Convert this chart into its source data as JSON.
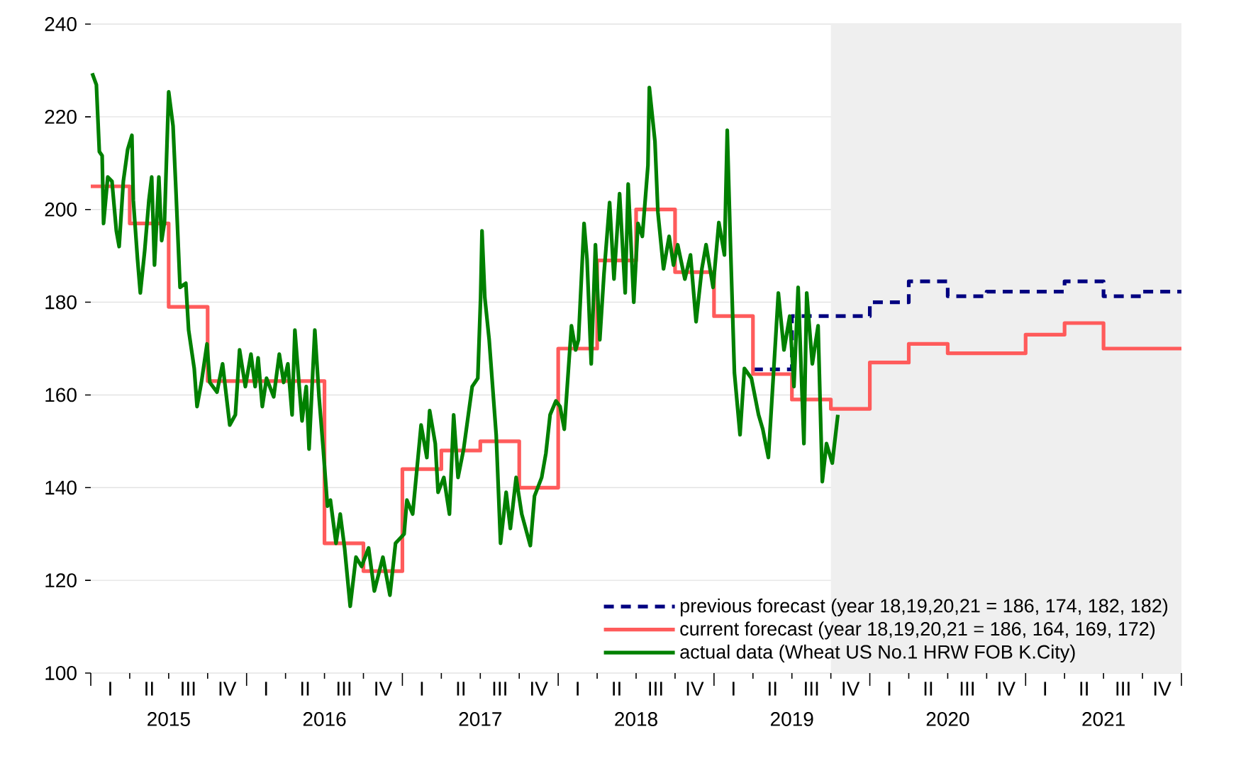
{
  "chart_data": {
    "type": "line",
    "xlim": [
      2015,
      2022
    ],
    "ylim": [
      100,
      240
    ],
    "yticks": [
      100,
      120,
      140,
      160,
      180,
      200,
      220,
      240
    ],
    "xticks": [
      {
        "value": 2015.0,
        "label": null
      },
      {
        "value": 2015.25,
        "label": null
      },
      {
        "value": 2015.5,
        "label": null
      },
      {
        "value": 2015.75,
        "label": null
      },
      {
        "value": 2016.0,
        "label": null
      },
      {
        "value": 2016.25,
        "label": null
      },
      {
        "value": 2016.5,
        "label": null
      },
      {
        "value": 2016.75,
        "label": null
      },
      {
        "value": 2017.0,
        "label": null
      },
      {
        "value": 2017.25,
        "label": null
      },
      {
        "value": 2017.5,
        "label": null
      },
      {
        "value": 2017.75,
        "label": null
      },
      {
        "value": 2018.0,
        "label": null
      },
      {
        "value": 2018.25,
        "label": null
      },
      {
        "value": 2018.5,
        "label": null
      },
      {
        "value": 2018.75,
        "label": null
      },
      {
        "value": 2019.0,
        "label": null
      },
      {
        "value": 2019.25,
        "label": null
      },
      {
        "value": 2019.5,
        "label": null
      },
      {
        "value": 2019.75,
        "label": null
      },
      {
        "value": 2020.0,
        "label": null
      },
      {
        "value": 2020.25,
        "label": null
      },
      {
        "value": 2020.5,
        "label": null
      },
      {
        "value": 2020.75,
        "label": null
      },
      {
        "value": 2021.0,
        "label": null
      },
      {
        "value": 2021.25,
        "label": null
      },
      {
        "value": 2021.5,
        "label": null
      },
      {
        "value": 2021.75,
        "label": null
      },
      {
        "value": 2022.0,
        "label": null
      },
      {
        "value": 2015.5,
        "label": "2015"
      },
      {
        "value": 2016.5,
        "label": "2016"
      },
      {
        "value": 2017.5,
        "label": "2017"
      },
      {
        "value": 2018.5,
        "label": "2018"
      },
      {
        "value": 2019.5,
        "label": "2019"
      },
      {
        "value": 2020.5,
        "label": "2020"
      },
      {
        "value": 2021.5,
        "label": "2021"
      }
    ],
    "annotations": [
      "I",
      "II",
      "III",
      "IV",
      "I",
      "II",
      "III",
      "IV",
      "I",
      "II",
      "III",
      "IV",
      "I",
      "II",
      "III",
      "IV",
      "I",
      "II",
      "III",
      "IV",
      "I",
      "II",
      "III",
      "IV",
      "I",
      "II",
      "III",
      "IV"
    ],
    "grid": "y",
    "legend": "bottom right",
    "bands": [
      {
        "axis": "x",
        "from": 2019.75,
        "to": 2022,
        "color": "#efefef"
      }
    ],
    "series": [
      {
        "name": "previous forecast (year 18,19,20,21 = 186, 174, 182, 182)",
        "type": "step",
        "line_style": "dashed",
        "color": "#000080",
        "x": [
          2019.25,
          2019.5,
          2019.75,
          2020.0,
          2020.25,
          2020.5,
          2020.75,
          2021.0,
          2021.25,
          2021.5,
          2021.75,
          2022.0
        ],
        "values": [
          165.5,
          177,
          177,
          180,
          184.5,
          181.3,
          182.3,
          182.3,
          184.5,
          181.3,
          182.3,
          182.3
        ]
      },
      {
        "name": "current forecast (year 18,19,20,21 = 186, 164, 169, 172)",
        "type": "step",
        "line_style": "solid",
        "color": "#ff5b5b",
        "x": [
          2015.0,
          2015.25,
          2015.5,
          2015.75,
          2016.0,
          2016.25,
          2016.5,
          2016.75,
          2017.0,
          2017.25,
          2017.5,
          2017.75,
          2018.0,
          2018.25,
          2018.5,
          2018.75,
          2019.0,
          2019.25,
          2019.5,
          2019.75,
          2020.0,
          2020.25,
          2020.5,
          2020.75,
          2021.0,
          2021.25,
          2021.5,
          2021.75,
          2022.0
        ],
        "values": [
          205,
          197,
          179,
          163,
          163,
          163,
          128,
          122,
          144,
          148,
          150,
          140,
          170,
          189,
          200,
          186.5,
          177,
          164.5,
          159,
          157,
          167,
          171,
          169,
          169,
          173,
          175.5,
          170,
          170,
          170
        ]
      },
      {
        "name": "actual data (Wheat US No.1 HRW FOB K.City)",
        "type": "line",
        "line_style": "solid",
        "color": "#008000",
        "x": [
          2015.009,
          2015.036,
          2015.055,
          2015.073,
          2015.082,
          2015.109,
          2015.136,
          2015.164,
          2015.182,
          2015.209,
          2015.237,
          2015.264,
          2015.273,
          2015.3,
          2015.318,
          2015.346,
          2015.373,
          2015.391,
          2015.409,
          2015.437,
          2015.455,
          2015.473,
          2015.5,
          2015.528,
          2015.546,
          2015.573,
          2015.61,
          2015.628,
          2015.664,
          2015.682,
          2015.71,
          2015.746,
          2015.764,
          2015.81,
          2015.846,
          2015.892,
          2015.928,
          2015.955,
          2015.992,
          2016.028,
          2016.055,
          2016.074,
          2016.101,
          2016.128,
          2016.174,
          2016.21,
          2016.238,
          2016.265,
          2016.292,
          2016.31,
          2016.338,
          2016.356,
          2016.383,
          2016.401,
          2016.438,
          2016.465,
          2016.492,
          2016.519,
          2016.538,
          2016.574,
          2016.601,
          2016.629,
          2016.665,
          2016.702,
          2016.738,
          2016.783,
          2016.82,
          2016.875,
          2016.92,
          2016.956,
          2017.011,
          2017.029,
          2017.066,
          2017.12,
          2017.157,
          2017.175,
          2017.211,
          2017.229,
          2017.266,
          2017.302,
          2017.329,
          2017.357,
          2017.393,
          2017.448,
          2017.484,
          2017.502,
          2017.511,
          2017.529,
          2017.557,
          2017.602,
          2017.63,
          2017.666,
          2017.693,
          2017.73,
          2017.766,
          2017.821,
          2017.848,
          2017.894,
          2017.921,
          2017.948,
          2017.985,
          2018.012,
          2018.039,
          2018.085,
          2018.112,
          2018.13,
          2018.166,
          2018.185,
          2018.212,
          2018.239,
          2018.267,
          2018.294,
          2018.33,
          2018.358,
          2018.394,
          2018.43,
          2018.449,
          2018.485,
          2018.512,
          2018.54,
          2018.576,
          2018.585,
          2018.621,
          2018.64,
          2018.676,
          2018.712,
          2018.74,
          2018.767,
          2018.813,
          2018.849,
          2018.885,
          2018.922,
          2018.949,
          2018.994,
          2019.031,
          2019.067,
          2019.085,
          2019.104,
          2019.131,
          2019.167,
          2019.195,
          2019.24,
          2019.286,
          2019.313,
          2019.349,
          2019.395,
          2019.413,
          2019.449,
          2019.486,
          2019.513,
          2019.54,
          2019.577,
          2019.595,
          2019.631,
          2019.668,
          2019.695,
          2019.722,
          2019.759,
          2019.795
        ],
        "values": [
          229.4,
          226.9,
          212.5,
          211.6,
          197,
          207,
          206.1,
          195.4,
          192,
          206.1,
          213,
          216,
          202,
          189.3,
          182,
          191.1,
          202,
          207,
          188,
          207,
          193.3,
          197.2,
          225.4,
          218,
          204.6,
          183.2,
          184.1,
          174,
          165.7,
          157.5,
          162.7,
          171,
          162.7,
          160.6,
          166.7,
          153.5,
          155.7,
          169.7,
          161.8,
          168.8,
          161.8,
          168,
          157.5,
          163.6,
          159.6,
          168.8,
          162.7,
          166.7,
          155.7,
          174,
          161.8,
          154.4,
          161.8,
          148.3,
          174,
          159.6,
          148.3,
          136,
          137.3,
          128,
          134.3,
          127,
          114.4,
          125,
          123,
          127,
          117.7,
          125,
          116.8,
          128,
          130,
          137.3,
          134.3,
          153.5,
          146.5,
          156.6,
          149.5,
          139,
          142.2,
          134.3,
          155.7,
          142.2,
          148.3,
          161.8,
          163.6,
          181,
          195.4,
          181,
          171.9,
          151.4,
          128,
          139,
          131.2,
          142.2,
          134.3,
          127.5,
          138.2,
          142.2,
          147.4,
          155.7,
          158.7,
          157.5,
          152.6,
          174.9,
          169.7,
          171.9,
          197,
          189.3,
          166.7,
          192.4,
          171.9,
          186.2,
          201.5,
          185,
          203.4,
          182,
          205.5,
          180,
          197,
          194.2,
          209.5,
          226.3,
          214.7,
          199.4,
          187.2,
          194.2,
          188,
          192.4,
          185,
          190.2,
          175.8,
          187.2,
          192.4,
          183.2,
          197.2,
          190.2,
          217.1,
          194.2,
          164.8,
          151.4,
          165.7,
          163.6,
          155.7,
          152.6,
          146.5,
          171.9,
          182,
          169.7,
          177,
          161.8,
          183.2,
          149.5,
          182,
          166.7,
          174.9,
          141.3,
          149.5,
          145.3,
          155.7
        ]
      }
    ]
  }
}
